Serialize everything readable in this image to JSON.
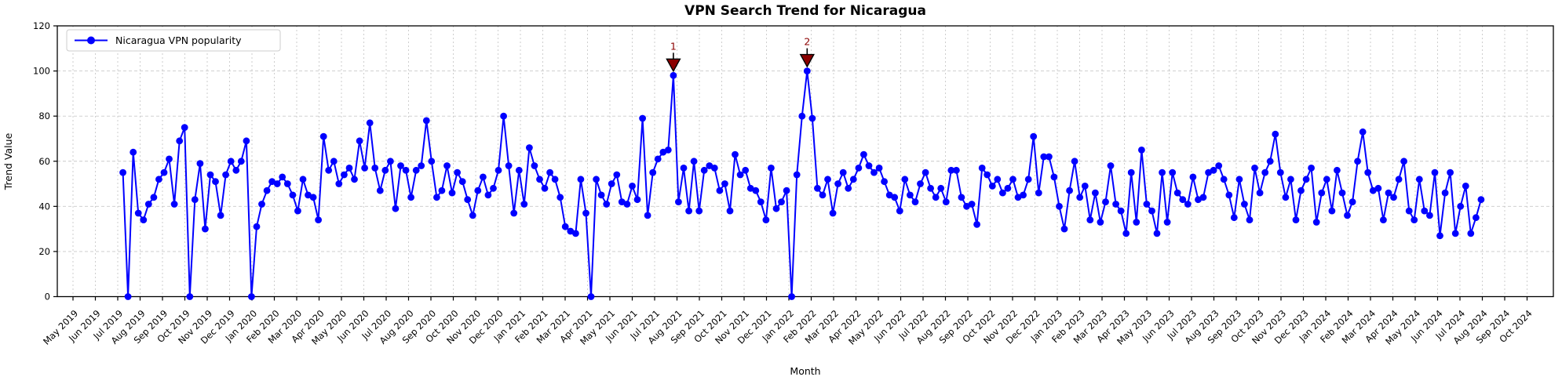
{
  "chart_data": {
    "type": "line",
    "title": "VPN Search Trend for Nicaragua",
    "xlabel": "Month",
    "ylabel": "Trend Value",
    "ylim": [
      0,
      120
    ],
    "y_ticks": [
      0,
      20,
      40,
      60,
      80,
      100,
      120
    ],
    "grid": true,
    "legend": {
      "position": "upper left",
      "entries": [
        "Nicaragua VPN popularity"
      ]
    },
    "x_tick_labels": [
      "May 2019",
      "Jun 2019",
      "Jul 2019",
      "Aug 2019",
      "Sep 2019",
      "Oct 2019",
      "Nov 2019",
      "Dec 2019",
      "Jan 2020",
      "Feb 2020",
      "Mar 2020",
      "Apr 2020",
      "May 2020",
      "Jun 2020",
      "Jul 2020",
      "Aug 2020",
      "Sep 2020",
      "Oct 2020",
      "Nov 2020",
      "Dec 2020",
      "Jan 2021",
      "Feb 2021",
      "Mar 2021",
      "Apr 2021",
      "May 2021",
      "Jun 2021",
      "Jul 2021",
      "Aug 2021",
      "Sep 2021",
      "Oct 2021",
      "Nov 2021",
      "Dec 2021",
      "Jan 2022",
      "Feb 2022",
      "Mar 2022",
      "Apr 2022",
      "May 2022",
      "Jun 2022",
      "Jul 2022",
      "Aug 2022",
      "Sep 2022",
      "Oct 2022",
      "Nov 2022",
      "Dec 2022",
      "Jan 2023",
      "Feb 2023",
      "Mar 2023",
      "Apr 2023",
      "May 2023",
      "Jun 2023",
      "Jul 2023",
      "Aug 2023",
      "Sep 2023",
      "Oct 2023",
      "Nov 2023",
      "Dec 2023",
      "Jan 2024",
      "Feb 2024",
      "Mar 2024",
      "Apr 2024",
      "May 2024",
      "Jun 2024",
      "Jul 2024",
      "Aug 2024",
      "Sep 2024",
      "Oct 2024"
    ],
    "series": [
      {
        "name": "Nicaragua VPN popularity",
        "color": "#0000ff",
        "marker": "circle",
        "cadence": "weekly",
        "first_point_month_offset": 2.23,
        "values": [
          55,
          0,
          64,
          37,
          34,
          41,
          44,
          52,
          55,
          61,
          41,
          69,
          75,
          0,
          43,
          59,
          30,
          54,
          51,
          36,
          54,
          60,
          56,
          60,
          69,
          0,
          31,
          41,
          47,
          51,
          50,
          53,
          50,
          45,
          38,
          52,
          45,
          44,
          34,
          71,
          56,
          60,
          50,
          54,
          57,
          52,
          69,
          57,
          77,
          57,
          47,
          56,
          60,
          39,
          58,
          56,
          44,
          56,
          58,
          78,
          60,
          44,
          47,
          58,
          46,
          55,
          51,
          43,
          36,
          47,
          53,
          45,
          48,
          56,
          80,
          58,
          37,
          56,
          41,
          66,
          58,
          52,
          48,
          55,
          52,
          44,
          31,
          29,
          28,
          52,
          37,
          0,
          52,
          45,
          41,
          50,
          54,
          42,
          41,
          49,
          43,
          79,
          36,
          55,
          61,
          64,
          65,
          98,
          42,
          57,
          38,
          60,
          38,
          56,
          58,
          57,
          47,
          50,
          38,
          63,
          54,
          56,
          48,
          47,
          42,
          34,
          57,
          39,
          42,
          47,
          0,
          54,
          80,
          100,
          79,
          48,
          45,
          52,
          37,
          50,
          55,
          48,
          52,
          57,
          63,
          58,
          55,
          57,
          51,
          45,
          44,
          38,
          52,
          45,
          42,
          50,
          55,
          48,
          44,
          48,
          42,
          56,
          56,
          44,
          40,
          41,
          32,
          57,
          54,
          49,
          52,
          46,
          48,
          52,
          44,
          45,
          52,
          71,
          46,
          62,
          62,
          53,
          40,
          30,
          47,
          60,
          44,
          49,
          34,
          46,
          33,
          42,
          58,
          41,
          38,
          28,
          55,
          33,
          65,
          41,
          38,
          28,
          55,
          33,
          55,
          46,
          43,
          41,
          53,
          43,
          44,
          55,
          56,
          58,
          52,
          45,
          35,
          52,
          41,
          34,
          57,
          46,
          55,
          60,
          72,
          55,
          44,
          52,
          34,
          47,
          52,
          57,
          33,
          46,
          52,
          38,
          56,
          46,
          36,
          42,
          60,
          73,
          55,
          47,
          48,
          34,
          46,
          44,
          52,
          60,
          38,
          34,
          52,
          38,
          36,
          55,
          27,
          46,
          55,
          28,
          40,
          49,
          28,
          35,
          43
        ]
      }
    ],
    "annotations": [
      {
        "label": "1",
        "week_index": 107,
        "value": 98,
        "arrow_color": "#8b0000",
        "text_color": "#8b0000"
      },
      {
        "label": "2",
        "week_index": 133,
        "value": 100,
        "arrow_color": "#8b0000",
        "text_color": "#8b0000"
      }
    ]
  }
}
